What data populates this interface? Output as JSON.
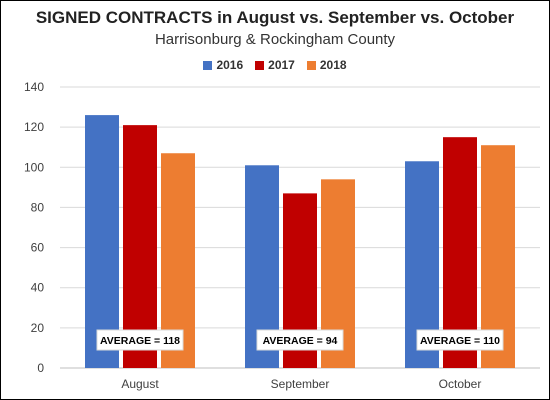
{
  "chart_data": {
    "type": "bar",
    "title": "SIGNED CONTRACTS in August vs. September vs. October",
    "subtitle": "Harrisonburg & Rockingham County",
    "categories": [
      "August",
      "September",
      "October"
    ],
    "series": [
      {
        "name": "2016",
        "color": "#4472C4",
        "values": [
          126,
          101,
          103
        ]
      },
      {
        "name": "2017",
        "color": "#C00000",
        "values": [
          121,
          87,
          115
        ]
      },
      {
        "name": "2018",
        "color": "#ED7D31",
        "values": [
          107,
          94,
          111
        ]
      }
    ],
    "annotations": [
      "AVERAGE = 118",
      "AVERAGE = 94",
      "AVERAGE = 110"
    ],
    "ylim": [
      0,
      140
    ],
    "yticks": [
      "0",
      "20",
      "40",
      "60",
      "80",
      "100",
      "120",
      "140"
    ],
    "grid": true,
    "legend_position": "top"
  }
}
